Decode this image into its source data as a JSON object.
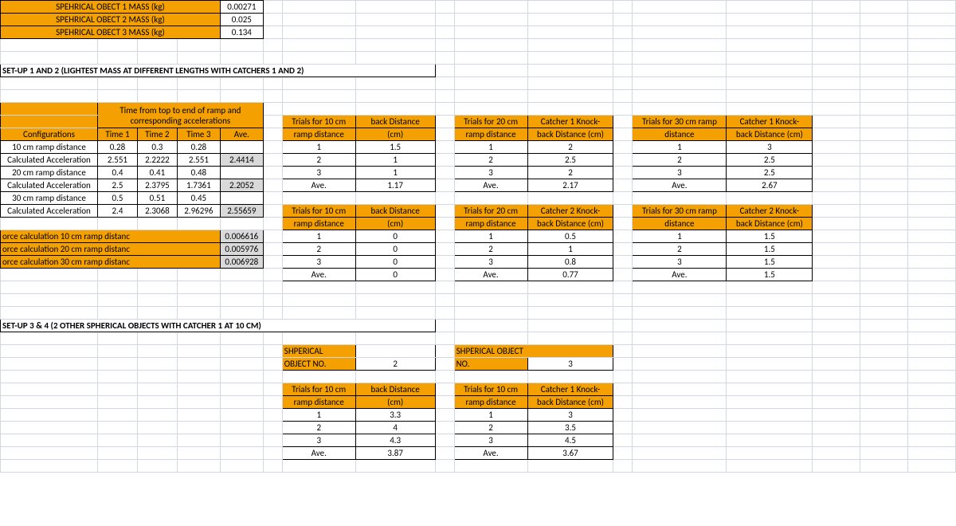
{
  "colors": {
    "orange": "#f3a000",
    "gridline": "#d0d7de",
    "border": "#000000",
    "greyFill": "#d9d9d9"
  },
  "massRows": [
    {
      "label": "SPEHRICAL OBECT 1 MASS (kg)",
      "value": "0.00271"
    },
    {
      "label": "SPEHRICAL OBECT 2 MASS (kg)",
      "value": "0.025"
    },
    {
      "label": "SPEHRICAL OBECT 3 MASS (kg)",
      "value": "0.134"
    }
  ],
  "setup12Title": "SET-UP 1 AND 2 (LIGHTEST MASS AT DIFFERENT LENGTHS WITH CATCHERS 1 AND 2)",
  "timesHeader": "Time from top to end of ramp and corresponding accelerations",
  "timesCols": {
    "config": "Configurations",
    "t1": "Time 1",
    "t2": "Time 2",
    "t3": "Time 3",
    "ave": "Ave."
  },
  "timesRows": [
    {
      "label": "10 cm ramp distance",
      "t1": "0.28",
      "t2": "0.3",
      "t3": "0.28",
      "ave": ""
    },
    {
      "label": "Calculated Acceleration",
      "t1": "2.551",
      "t2": "2.2222",
      "t3": "2.551",
      "ave": "2.4414"
    },
    {
      "label": "20 cm ramp distance",
      "t1": "0.4",
      "t2": "0.41",
      "t3": "0.48",
      "ave": ""
    },
    {
      "label": "Calculated Acceleration",
      "t1": "2.5",
      "t2": "2.3795",
      "t3": "1.7361",
      "ave": "2.2052"
    },
    {
      "label": "30 cm ramp distance",
      "t1": "0.5",
      "t2": "0.51",
      "t3": "0.45",
      "ave": ""
    },
    {
      "label": "Calculated Acceleration",
      "t1": "2.4",
      "t2": "2.3068",
      "t3": "2.96296",
      "ave": "2.55659"
    }
  ],
  "forceRows": [
    {
      "label": "orce calculation 10 cm ramp distanc",
      "value": "0.006616"
    },
    {
      "label": "orce calculation 20 cm ramp distanc",
      "value": "0.005976"
    },
    {
      "label": "orce calculation 30 cm ramp distanc",
      "value": "0.006928"
    }
  ],
  "trialLabels": {
    "one": "1",
    "two": "2",
    "three": "3",
    "ave": "Ave."
  },
  "c1_10": {
    "h1": "Trials for 10 cm",
    "h1b": "ramp distance",
    "h2": "back Distance",
    "h2b": "(cm)",
    "v1": "1.5",
    "v2": "1",
    "v3": "1",
    "ave": "1.17"
  },
  "c1_20": {
    "h1": "Trials for 20 cm",
    "h1b": "ramp distance",
    "h2": "Catcher 1 Knock-",
    "h2b": "back Distance (cm)",
    "v1": "2",
    "v2": "2.5",
    "v3": "2",
    "ave": "2.17"
  },
  "c1_30": {
    "h1": "Trials for 30 cm ramp",
    "h1b": "distance",
    "h2": "Catcher 1 Knock-",
    "h2b": "back Distance (cm)",
    "v1": "3",
    "v2": "2.5",
    "v3": "2.5",
    "ave": "2.67"
  },
  "c2_10": {
    "h1": "Trials for 10 cm",
    "h1b": "ramp distance",
    "h2": "back Distance",
    "h2b": "(cm)",
    "v1": "0",
    "v2": "0",
    "v3": "0",
    "ave": "0"
  },
  "c2_20": {
    "h1": "Trials for 20 cm",
    "h1b": "ramp distance",
    "h2": "Catcher 2 Knock-",
    "h2b": "back Distance (cm)",
    "v1": "0.5",
    "v2": "1",
    "v3": "0.8",
    "ave": "0.77"
  },
  "c2_30": {
    "h1": "Trials for 30 cm ramp",
    "h1b": "distance",
    "h2": "Catcher 2 Knock-",
    "h2b": "back Distance (cm)",
    "v1": "1.5",
    "v2": "1.5",
    "v3": "1.5",
    "ave": "1.5"
  },
  "setup34Title": "SET-UP 3 & 4 (2 OTHER SPHERICAL OBJECTS WITH CATCHER 1 AT 10 CM)",
  "obj2Label1": "SHPERICAL",
  "obj2Label2": "OBJECT NO.",
  "obj2Num": "2",
  "obj3Label": "SHPERICAL OBJECT",
  "obj3Label2": "NO.",
  "obj3Num": "3",
  "s34_obj2": {
    "h1": "Trials for 10 cm",
    "h1b": "ramp distance",
    "h2": "back Distance",
    "h2b": "(cm)",
    "v1": "3.3",
    "v2": "4",
    "v3": "4.3",
    "ave": "3.87"
  },
  "s34_obj3": {
    "h1": "Trials for 10 cm",
    "h1b": "ramp distance",
    "h2": "Catcher 1 Knock-",
    "h2b": "back Distance (cm)",
    "v1": "3",
    "v2": "3.5",
    "v3": "4.5",
    "ave": "3.67"
  }
}
